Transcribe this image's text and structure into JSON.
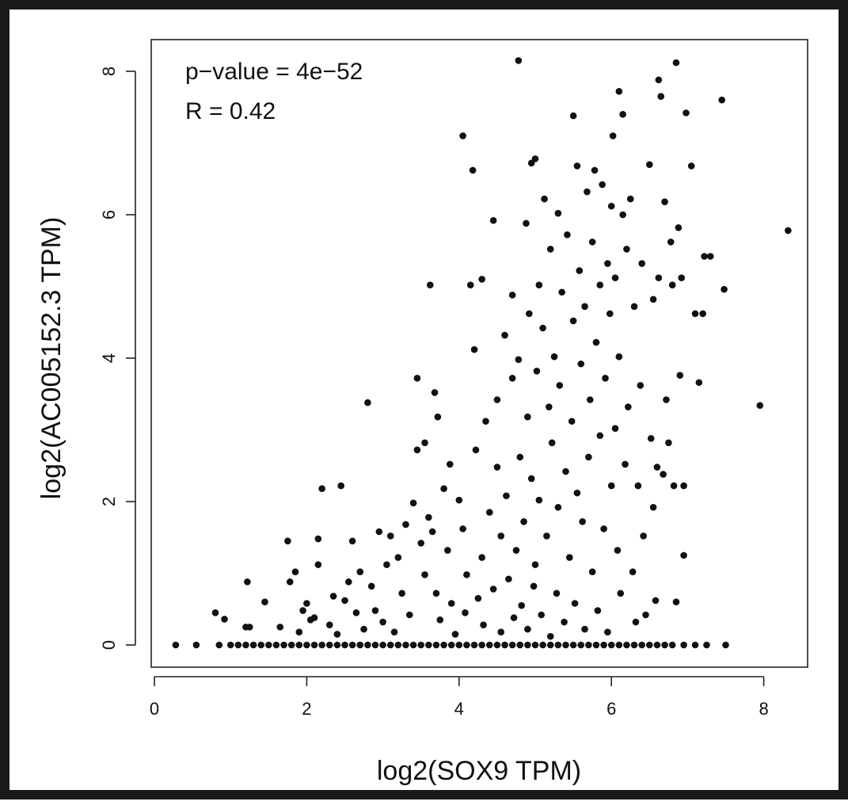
{
  "chart_data": {
    "type": "scatter",
    "title": "",
    "xlabel": "log2(SOX9 TPM)",
    "ylabel": "log2(AC005152.3 TPM)",
    "xlim": [
      0,
      8.5
    ],
    "ylim": [
      0,
      8
    ],
    "xticks": [
      0,
      2,
      4,
      6,
      8
    ],
    "yticks": [
      0,
      2,
      4,
      6,
      8
    ],
    "grid": false,
    "legend": "none",
    "annotations": [
      "p−value = 4e−52",
      "R = 0.42"
    ],
    "point_color": "#111111",
    "series": [
      {
        "points": [
          [
            0.28,
            0
          ],
          [
            0.55,
            0
          ],
          [
            0.85,
            0
          ],
          [
            1.0,
            0
          ],
          [
            1.1,
            0
          ],
          [
            1.2,
            0
          ],
          [
            1.3,
            0
          ],
          [
            1.4,
            0
          ],
          [
            1.5,
            0
          ],
          [
            1.6,
            0
          ],
          [
            1.7,
            0
          ],
          [
            1.8,
            0
          ],
          [
            1.9,
            0
          ],
          [
            2.0,
            0
          ],
          [
            2.1,
            0
          ],
          [
            2.2,
            0
          ],
          [
            2.3,
            0
          ],
          [
            2.4,
            0
          ],
          [
            2.5,
            0
          ],
          [
            2.6,
            0
          ],
          [
            2.7,
            0
          ],
          [
            2.8,
            0
          ],
          [
            2.9,
            0
          ],
          [
            3.0,
            0
          ],
          [
            3.1,
            0
          ],
          [
            3.2,
            0
          ],
          [
            3.3,
            0
          ],
          [
            3.4,
            0
          ],
          [
            3.5,
            0
          ],
          [
            3.6,
            0
          ],
          [
            3.7,
            0
          ],
          [
            3.8,
            0
          ],
          [
            3.9,
            0
          ],
          [
            4.0,
            0
          ],
          [
            4.1,
            0
          ],
          [
            4.2,
            0
          ],
          [
            4.3,
            0
          ],
          [
            4.4,
            0
          ],
          [
            4.5,
            0
          ],
          [
            4.6,
            0
          ],
          [
            4.7,
            0
          ],
          [
            4.8,
            0
          ],
          [
            4.9,
            0
          ],
          [
            5.0,
            0
          ],
          [
            5.1,
            0
          ],
          [
            5.2,
            0
          ],
          [
            5.3,
            0
          ],
          [
            5.4,
            0
          ],
          [
            5.5,
            0
          ],
          [
            5.6,
            0
          ],
          [
            5.7,
            0
          ],
          [
            5.8,
            0
          ],
          [
            5.9,
            0
          ],
          [
            6.0,
            0
          ],
          [
            6.1,
            0
          ],
          [
            6.2,
            0
          ],
          [
            6.3,
            0
          ],
          [
            6.4,
            0
          ],
          [
            6.5,
            0
          ],
          [
            6.6,
            0
          ],
          [
            6.7,
            0
          ],
          [
            6.8,
            0
          ],
          [
            6.95,
            0
          ],
          [
            7.1,
            0
          ],
          [
            7.25,
            0
          ],
          [
            7.5,
            0
          ],
          [
            0.8,
            0.45
          ],
          [
            0.92,
            0.36
          ],
          [
            1.22,
            0.88
          ],
          [
            1.2,
            0.25
          ],
          [
            1.25,
            0.25
          ],
          [
            1.45,
            0.6
          ],
          [
            1.65,
            0.25
          ],
          [
            1.75,
            1.45
          ],
          [
            1.78,
            0.88
          ],
          [
            1.85,
            1.02
          ],
          [
            1.9,
            0.18
          ],
          [
            1.95,
            0.48
          ],
          [
            2.0,
            0.58
          ],
          [
            2.05,
            0.35
          ],
          [
            2.1,
            0.38
          ],
          [
            2.15,
            1.12
          ],
          [
            2.15,
            1.48
          ],
          [
            2.2,
            2.18
          ],
          [
            2.3,
            0.28
          ],
          [
            2.35,
            0.68
          ],
          [
            2.4,
            0.15
          ],
          [
            2.45,
            2.22
          ],
          [
            2.5,
            0.62
          ],
          [
            2.55,
            0.88
          ],
          [
            2.6,
            1.45
          ],
          [
            2.65,
            0.45
          ],
          [
            2.7,
            1.02
          ],
          [
            2.75,
            0.22
          ],
          [
            2.8,
            3.38
          ],
          [
            2.85,
            0.82
          ],
          [
            2.9,
            0.48
          ],
          [
            2.95,
            1.58
          ],
          [
            3.0,
            0.32
          ],
          [
            3.05,
            1.12
          ],
          [
            3.1,
            1.52
          ],
          [
            3.15,
            0.18
          ],
          [
            3.2,
            1.22
          ],
          [
            3.25,
            0.72
          ],
          [
            3.3,
            1.68
          ],
          [
            3.35,
            0.42
          ],
          [
            3.4,
            1.98
          ],
          [
            3.45,
            3.72
          ],
          [
            3.45,
            2.72
          ],
          [
            3.5,
            1.42
          ],
          [
            3.55,
            0.98
          ],
          [
            3.55,
            2.82
          ],
          [
            3.6,
            1.78
          ],
          [
            3.62,
            5.02
          ],
          [
            3.65,
            1.58
          ],
          [
            3.68,
            3.52
          ],
          [
            3.7,
            0.72
          ],
          [
            3.72,
            3.18
          ],
          [
            3.75,
            0.35
          ],
          [
            3.8,
            2.18
          ],
          [
            3.85,
            1.32
          ],
          [
            3.88,
            2.52
          ],
          [
            3.9,
            0.58
          ],
          [
            3.95,
            0.15
          ],
          [
            4.0,
            2.02
          ],
          [
            4.05,
            1.62
          ],
          [
            4.05,
            7.1
          ],
          [
            4.08,
            0.45
          ],
          [
            4.1,
            0.98
          ],
          [
            4.15,
            5.02
          ],
          [
            4.18,
            6.62
          ],
          [
            4.2,
            4.12
          ],
          [
            4.22,
            2.72
          ],
          [
            4.25,
            0.65
          ],
          [
            4.3,
            1.22
          ],
          [
            4.3,
            5.1
          ],
          [
            4.32,
            0.28
          ],
          [
            4.35,
            3.12
          ],
          [
            4.4,
            1.85
          ],
          [
            4.45,
            0.78
          ],
          [
            4.45,
            5.92
          ],
          [
            4.5,
            2.48
          ],
          [
            4.5,
            3.42
          ],
          [
            4.55,
            0.18
          ],
          [
            4.55,
            1.52
          ],
          [
            4.6,
            4.32
          ],
          [
            4.62,
            2.08
          ],
          [
            4.65,
            0.92
          ],
          [
            4.7,
            3.72
          ],
          [
            4.7,
            4.88
          ],
          [
            4.72,
            0.38
          ],
          [
            4.75,
            1.32
          ],
          [
            4.78,
            3.98
          ],
          [
            4.78,
            8.15
          ],
          [
            4.8,
            2.62
          ],
          [
            4.82,
            0.55
          ],
          [
            4.85,
            1.72
          ],
          [
            4.88,
            5.88
          ],
          [
            4.9,
            0.22
          ],
          [
            4.9,
            3.18
          ],
          [
            4.92,
            4.62
          ],
          [
            4.95,
            2.32
          ],
          [
            4.95,
            6.72
          ],
          [
            4.98,
            0.82
          ],
          [
            5.0,
            6.78
          ],
          [
            5.0,
            1.12
          ],
          [
            5.02,
            3.82
          ],
          [
            5.05,
            5.02
          ],
          [
            5.05,
            2.02
          ],
          [
            5.08,
            0.42
          ],
          [
            5.1,
            4.42
          ],
          [
            5.12,
            6.22
          ],
          [
            5.15,
            1.52
          ],
          [
            5.18,
            3.32
          ],
          [
            5.2,
            0.12
          ],
          [
            5.2,
            5.52
          ],
          [
            5.22,
            2.82
          ],
          [
            5.25,
            4.02
          ],
          [
            5.28,
            0.72
          ],
          [
            5.3,
            1.92
          ],
          [
            5.3,
            6.02
          ],
          [
            5.32,
            3.62
          ],
          [
            5.35,
            4.92
          ],
          [
            5.38,
            0.32
          ],
          [
            5.4,
            2.42
          ],
          [
            5.42,
            5.72
          ],
          [
            5.45,
            1.22
          ],
          [
            5.48,
            3.12
          ],
          [
            5.5,
            7.38
          ],
          [
            5.5,
            4.52
          ],
          [
            5.52,
            0.58
          ],
          [
            5.55,
            6.68
          ],
          [
            5.55,
            2.12
          ],
          [
            5.58,
            5.22
          ],
          [
            5.6,
            3.92
          ],
          [
            5.62,
            1.72
          ],
          [
            5.65,
            0.22
          ],
          [
            5.65,
            4.72
          ],
          [
            5.68,
            6.32
          ],
          [
            5.7,
            2.62
          ],
          [
            5.72,
            3.42
          ],
          [
            5.75,
            5.62
          ],
          [
            5.75,
            1.02
          ],
          [
            5.78,
            6.62
          ],
          [
            5.8,
            4.22
          ],
          [
            5.82,
            0.48
          ],
          [
            5.85,
            2.92
          ],
          [
            5.85,
            5.02
          ],
          [
            5.88,
            6.42
          ],
          [
            5.9,
            1.62
          ],
          [
            5.92,
            3.72
          ],
          [
            5.95,
            5.32
          ],
          [
            5.95,
            0.18
          ],
          [
            5.98,
            4.62
          ],
          [
            6.0,
            6.12
          ],
          [
            6.0,
            2.22
          ],
          [
            6.02,
            7.1
          ],
          [
            6.05,
            3.02
          ],
          [
            6.05,
            5.12
          ],
          [
            6.08,
            1.32
          ],
          [
            6.1,
            7.72
          ],
          [
            6.1,
            4.02
          ],
          [
            6.12,
            0.72
          ],
          [
            6.15,
            7.4
          ],
          [
            6.15,
            6.0
          ],
          [
            6.18,
            2.52
          ],
          [
            6.2,
            5.52
          ],
          [
            6.22,
            3.32
          ],
          [
            6.25,
            6.22
          ],
          [
            6.28,
            1.02
          ],
          [
            6.3,
            4.72
          ],
          [
            6.32,
            0.32
          ],
          [
            6.35,
            2.22
          ],
          [
            6.38,
            3.62
          ],
          [
            6.4,
            5.32
          ],
          [
            6.42,
            1.52
          ],
          [
            6.45,
            0.42
          ],
          [
            6.5,
            6.7
          ],
          [
            6.52,
            2.88
          ],
          [
            6.55,
            4.82
          ],
          [
            6.55,
            1.92
          ],
          [
            6.58,
            0.62
          ],
          [
            6.6,
            2.48
          ],
          [
            6.62,
            7.88
          ],
          [
            6.62,
            5.12
          ],
          [
            6.65,
            7.65
          ],
          [
            6.68,
            2.38
          ],
          [
            6.7,
            6.18
          ],
          [
            6.72,
            3.42
          ],
          [
            6.75,
            2.82
          ],
          [
            6.78,
            5.62
          ],
          [
            6.8,
            5.02
          ],
          [
            6.82,
            2.22
          ],
          [
            6.85,
            0.6
          ],
          [
            6.85,
            8.12
          ],
          [
            6.88,
            5.82
          ],
          [
            6.9,
            3.76
          ],
          [
            6.92,
            5.12
          ],
          [
            6.95,
            2.22
          ],
          [
            6.95,
            1.25
          ],
          [
            6.98,
            7.42
          ],
          [
            7.05,
            6.68
          ],
          [
            7.1,
            4.62
          ],
          [
            7.15,
            3.66
          ],
          [
            7.2,
            4.62
          ],
          [
            7.22,
            5.42
          ],
          [
            7.3,
            5.42
          ],
          [
            7.45,
            7.6
          ],
          [
            7.48,
            4.96
          ],
          [
            7.95,
            3.34
          ],
          [
            8.32,
            5.78
          ]
        ]
      }
    ]
  }
}
